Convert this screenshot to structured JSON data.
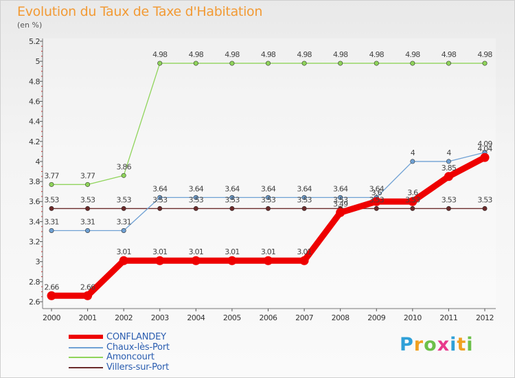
{
  "chart_data": {
    "type": "line",
    "title": "Evolution du Taux de Taxe d'Habitation",
    "ylabel": "(en %)",
    "xlabel": "",
    "x": [
      "2000",
      "2001",
      "2002",
      "2003",
      "2004",
      "2005",
      "2006",
      "2007",
      "2008",
      "2009",
      "2010",
      "2011",
      "2012"
    ],
    "ylim": [
      2.6,
      5.2
    ],
    "yticks": [
      "2.6",
      "2.8",
      "3",
      "3.2",
      "3.4",
      "3.6",
      "3.8",
      "4",
      "4.2",
      "4.4",
      "4.6",
      "4.8",
      "5",
      "5.2"
    ],
    "series": [
      {
        "name": "Villers-sur-Port",
        "color": "#6b2a2a",
        "values": [
          3.53,
          3.53,
          3.53,
          3.53,
          3.53,
          3.53,
          3.53,
          3.53,
          3.53,
          3.53,
          3.53,
          3.53,
          3.53
        ],
        "labels": [
          "3.53",
          "3.53",
          "3.53",
          "3.53",
          "3.53",
          "3.53",
          "3.53",
          "3.53",
          "3.53",
          "3.53",
          "3.53",
          "3.53",
          "3.53"
        ]
      },
      {
        "name": "Amoncourt",
        "color": "#8fd45a",
        "values": [
          3.77,
          3.77,
          3.86,
          4.98,
          4.98,
          4.98,
          4.98,
          4.98,
          4.98,
          4.98,
          4.98,
          4.98,
          4.98
        ],
        "labels": [
          "3.77",
          "3.77",
          "3.86",
          "4.98",
          "4.98",
          "4.98",
          "4.98",
          "4.98",
          "4.98",
          "4.98",
          "4.98",
          "4.98",
          "4.98"
        ]
      },
      {
        "name": "Chaux-lès-Port",
        "color": "#6fa1d4",
        "values": [
          3.31,
          3.31,
          3.31,
          3.64,
          3.64,
          3.64,
          3.64,
          3.64,
          3.64,
          3.64,
          4,
          4,
          4.09
        ],
        "labels": [
          "3.31",
          "3.31",
          "3.31",
          "3.64",
          "3.64",
          "3.64",
          "3.64",
          "3.64",
          "3.64",
          "3.64",
          "4",
          "4",
          "4.09"
        ]
      },
      {
        "name": "CONFLANDEY",
        "color": "#ee0000",
        "values": [
          2.66,
          2.66,
          3.01,
          3.01,
          3.01,
          3.01,
          3.01,
          3.01,
          3.49,
          3.6,
          3.6,
          3.85,
          4.04
        ],
        "labels": [
          "2.66",
          "2.66",
          "3.01",
          "3.01",
          "3.01",
          "3.01",
          "3.01",
          "3.01",
          "3.49",
          "3.6",
          "3.6",
          "3.85",
          "4.04"
        ]
      }
    ],
    "legend": [
      "CONFLANDEY",
      "Chaux-lès-Port",
      "Amoncourt",
      "Villers-sur-Port"
    ],
    "legend_placement": "bottom-left"
  },
  "branding": {
    "letters": [
      "P",
      "r",
      "o",
      "x",
      "i",
      "t",
      "i"
    ],
    "colors": [
      "#2fa0d8",
      "#f0a020",
      "#6cc04a",
      "#e83a8c",
      "#2fa0d8",
      "#f0a020",
      "#6cc04a"
    ]
  }
}
